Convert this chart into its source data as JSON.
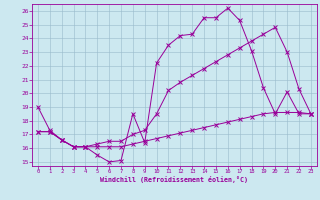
{
  "xlabel": "Windchill (Refroidissement éolien,°C)",
  "bg_color": "#cce8f0",
  "line_color": "#990099",
  "grid_color": "#99bbcc",
  "xlim_min": -0.5,
  "xlim_max": 23.5,
  "ylim_min": 14.7,
  "ylim_max": 26.5,
  "xticks": [
    0,
    1,
    2,
    3,
    4,
    5,
    6,
    7,
    8,
    9,
    10,
    11,
    12,
    13,
    14,
    15,
    16,
    17,
    18,
    19,
    20,
    21,
    22,
    23
  ],
  "yticks": [
    15,
    16,
    17,
    18,
    19,
    20,
    21,
    22,
    23,
    24,
    25,
    26
  ],
  "line1_x": [
    0,
    1,
    2,
    3,
    4,
    5,
    6,
    7,
    8,
    9,
    10,
    11,
    12,
    13,
    14,
    15,
    16,
    17,
    18,
    19,
    20,
    21,
    22,
    23
  ],
  "line1_y": [
    19.0,
    17.3,
    16.6,
    16.1,
    16.1,
    15.5,
    15.0,
    15.1,
    18.5,
    16.4,
    22.2,
    23.5,
    24.2,
    24.3,
    25.5,
    25.5,
    26.2,
    25.3,
    23.1,
    20.4,
    18.5,
    20.1,
    18.5,
    18.5
  ],
  "line2_x": [
    0,
    1,
    2,
    3,
    4,
    5,
    6,
    7,
    8,
    9,
    10,
    11,
    12,
    13,
    14,
    15,
    16,
    17,
    18,
    19,
    20,
    21,
    22,
    23
  ],
  "line2_y": [
    17.2,
    17.2,
    16.6,
    16.1,
    16.1,
    16.3,
    16.5,
    16.5,
    17.0,
    17.3,
    18.5,
    20.2,
    20.8,
    21.3,
    21.8,
    22.3,
    22.8,
    23.3,
    23.8,
    24.3,
    24.8,
    23.0,
    20.3,
    18.5
  ],
  "line3_x": [
    0,
    1,
    2,
    3,
    4,
    5,
    6,
    7,
    8,
    9,
    10,
    11,
    12,
    13,
    14,
    15,
    16,
    17,
    18,
    19,
    20,
    21,
    22,
    23
  ],
  "line3_y": [
    17.2,
    17.2,
    16.6,
    16.1,
    16.1,
    16.1,
    16.1,
    16.1,
    16.3,
    16.5,
    16.7,
    16.9,
    17.1,
    17.3,
    17.5,
    17.7,
    17.9,
    18.1,
    18.3,
    18.5,
    18.6,
    18.6,
    18.6,
    18.5
  ]
}
